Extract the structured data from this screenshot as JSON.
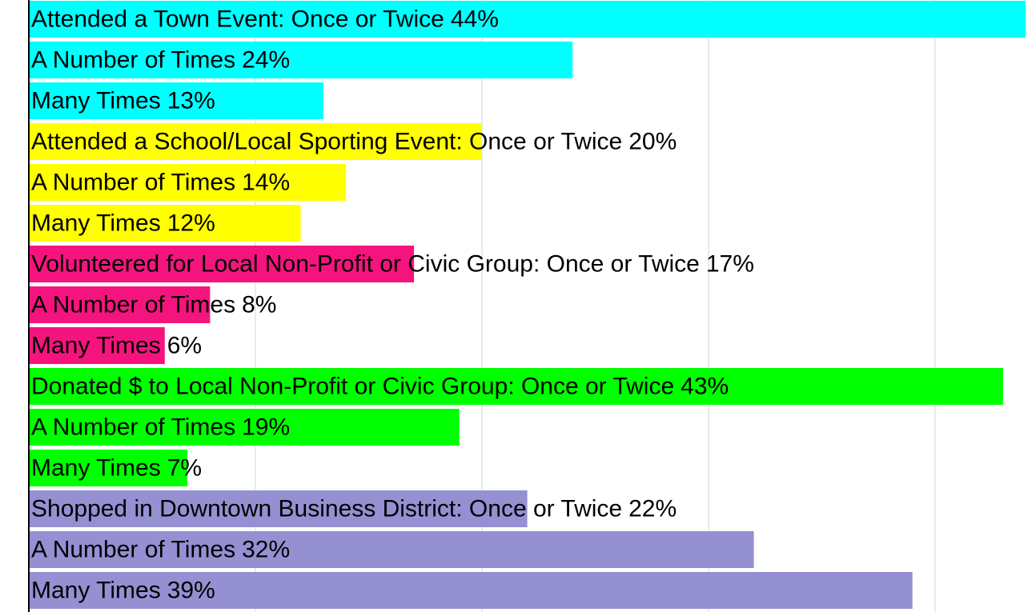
{
  "chart_data": {
    "type": "bar",
    "orientation": "horizontal",
    "categories": [
      "Attended a Town Event: Once or Twice",
      "A Number of Times",
      "Many Times",
      "Attended a School/Local Sporting Event: Once or Twice",
      "A Number of Times",
      "Many Times",
      "Volunteered for Local Non-Profit or Civic Group: Once or Twice",
      "A Number of Times",
      "Many Times",
      "Donated $ to Local Non-Profit or Civic Group: Once or Twice",
      "A Number of Times",
      "Many Times",
      "Shopped in Downtown Business District: Once or Twice",
      "A Number of Times",
      "Many Times"
    ],
    "values": [
      44,
      24,
      13,
      20,
      14,
      12,
      17,
      8,
      6,
      43,
      19,
      7,
      22,
      32,
      39
    ],
    "value_labels": [
      "44%",
      "24%",
      "13%",
      "20%",
      "14%",
      "12%",
      "17%",
      "8%",
      "6%",
      "43%",
      "19%",
      "7%",
      "22%",
      "32%",
      "39%"
    ],
    "colors": [
      "#00ffff",
      "#00ffff",
      "#00ffff",
      "#ffff00",
      "#ffff00",
      "#ffff00",
      "#f5147d",
      "#f5147d",
      "#f5147d",
      "#00ff00",
      "#00ff00",
      "#00ff00",
      "#9490d2",
      "#9490d2",
      "#9490d2"
    ],
    "xlim": [
      0,
      44.1
    ],
    "xticks": [
      10,
      20,
      30,
      40
    ],
    "grid": true
  }
}
